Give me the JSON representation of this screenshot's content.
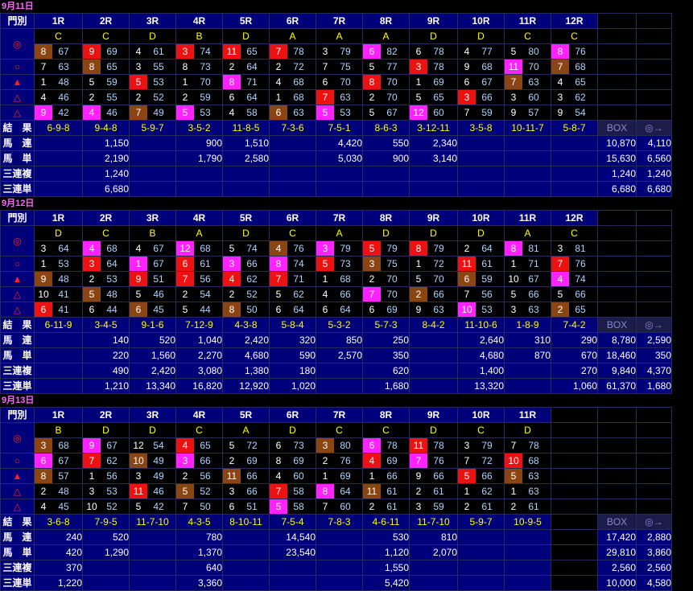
{
  "colors": {
    "red": "#ee1111",
    "magenta": "#ff22ff",
    "brown": "#8b4513",
    "header_bg": "#00007a",
    "grade": "#ffff00",
    "score": "#aad4ff"
  },
  "symbols": [
    "◎",
    "○",
    "▲",
    "△",
    "△"
  ],
  "labels": {
    "mark": "門別",
    "result": "結　果",
    "umaren": "馬　連",
    "umatan": "馬　単",
    "sanrenpuku": "三連複",
    "sanrentan": "三連単",
    "box": "BOX",
    "maru": "◎→"
  },
  "days": [
    {
      "date": "9月11日",
      "races": [
        "1R",
        "2R",
        "3R",
        "4R",
        "5R",
        "6R",
        "7R",
        "8R",
        "9R",
        "10R",
        "11R",
        "12R"
      ],
      "grades": [
        "C",
        "C",
        "D",
        "B",
        "D",
        "A",
        "A",
        "A",
        "D",
        "D",
        "C",
        "C"
      ],
      "rows": [
        [
          [
            "8",
            "67",
            "brn"
          ],
          [
            "9",
            "69",
            "red"
          ],
          [
            "4",
            "61",
            ""
          ],
          [
            "3",
            "74",
            "red"
          ],
          [
            "11",
            "65",
            "red"
          ],
          [
            "7",
            "78",
            "red"
          ],
          [
            "3",
            "79",
            ""
          ],
          [
            "6",
            "82",
            "mag"
          ],
          [
            "6",
            "78",
            ""
          ],
          [
            "4",
            "77",
            ""
          ],
          [
            "5",
            "80",
            ""
          ],
          [
            "8",
            "76",
            "mag"
          ]
        ],
        [
          [
            "7",
            "63",
            ""
          ],
          [
            "8",
            "65",
            "brn"
          ],
          [
            "3",
            "55",
            ""
          ],
          [
            "8",
            "73",
            ""
          ],
          [
            "2",
            "64",
            ""
          ],
          [
            "2",
            "72",
            ""
          ],
          [
            "7",
            "75",
            ""
          ],
          [
            "5",
            "77",
            ""
          ],
          [
            "3",
            "78",
            "red"
          ],
          [
            "9",
            "68",
            ""
          ],
          [
            "11",
            "70",
            "mag"
          ],
          [
            "7",
            "68",
            "brn"
          ]
        ],
        [
          [
            "1",
            "48",
            ""
          ],
          [
            "5",
            "59",
            ""
          ],
          [
            "5",
            "53",
            "red"
          ],
          [
            "1",
            "70",
            ""
          ],
          [
            "8",
            "71",
            "mag"
          ],
          [
            "4",
            "68",
            ""
          ],
          [
            "6",
            "70",
            ""
          ],
          [
            "8",
            "70",
            "red"
          ],
          [
            "1",
            "69",
            ""
          ],
          [
            "6",
            "67",
            ""
          ],
          [
            "7",
            "63",
            "brn"
          ],
          [
            "4",
            "65",
            ""
          ]
        ],
        [
          [
            "4",
            "46",
            ""
          ],
          [
            "2",
            "55",
            ""
          ],
          [
            "2",
            "52",
            ""
          ],
          [
            "2",
            "59",
            ""
          ],
          [
            "6",
            "64",
            ""
          ],
          [
            "1",
            "68",
            ""
          ],
          [
            "7",
            "63",
            "red"
          ],
          [
            "2",
            "70",
            ""
          ],
          [
            "5",
            "65",
            ""
          ],
          [
            "3",
            "66",
            "red"
          ],
          [
            "3",
            "60",
            ""
          ],
          [
            "3",
            "62",
            ""
          ]
        ],
        [
          [
            "9",
            "42",
            "mag"
          ],
          [
            "4",
            "46",
            "mag"
          ],
          [
            "7",
            "49",
            "brn"
          ],
          [
            "5",
            "53",
            "mag"
          ],
          [
            "4",
            "58",
            ""
          ],
          [
            "6",
            "63",
            "brn"
          ],
          [
            "5",
            "53",
            "mag"
          ],
          [
            "5",
            "67",
            ""
          ],
          [
            "12",
            "60",
            "mag"
          ],
          [
            "7",
            "59",
            ""
          ],
          [
            "9",
            "57",
            ""
          ],
          [
            "9",
            "54",
            ""
          ]
        ]
      ],
      "results": [
        "6-9-8",
        "9-4-8",
        "5-9-7",
        "3-5-2",
        "11-8-5",
        "7-3-6",
        "7-5-1",
        "8-6-3",
        "3-12-11",
        "3-5-8",
        "10-11-7",
        "5-8-7"
      ],
      "umaren": [
        "",
        "1,150",
        "",
        "900",
        "1,510",
        "",
        "4,420",
        "550",
        "2,340",
        "",
        "",
        ""
      ],
      "umatan": [
        "",
        "2,190",
        "",
        "1,790",
        "2,580",
        "",
        "5,030",
        "900",
        "3,140",
        "",
        "",
        ""
      ],
      "sanrenpuku": [
        "",
        "1,240",
        "",
        "",
        "",
        "",
        "",
        "",
        "",
        "",
        "",
        ""
      ],
      "sanrentan": [
        "",
        "6,680",
        "",
        "",
        "",
        "",
        "",
        "",
        "",
        "",
        "",
        ""
      ],
      "box": {
        "umaren": [
          "10,870",
          "4,110"
        ],
        "umatan": [
          "15,630",
          "6,560"
        ],
        "sanrenpuku": [
          "1,240",
          "1,240"
        ],
        "sanrentan": [
          "6,680",
          "6,680"
        ]
      }
    },
    {
      "date": "9月12日",
      "races": [
        "1R",
        "2R",
        "3R",
        "4R",
        "5R",
        "6R",
        "7R",
        "8R",
        "9R",
        "10R",
        "11R",
        "12R"
      ],
      "grades": [
        "D",
        "C",
        "B",
        "A",
        "D",
        "C",
        "A",
        "D",
        "D",
        "D",
        "A",
        "C"
      ],
      "rows": [
        [
          [
            "3",
            "64",
            ""
          ],
          [
            "4",
            "68",
            "mag"
          ],
          [
            "4",
            "67",
            ""
          ],
          [
            "12",
            "68",
            "mag"
          ],
          [
            "5",
            "74",
            ""
          ],
          [
            "4",
            "76",
            "brn"
          ],
          [
            "3",
            "79",
            "mag"
          ],
          [
            "5",
            "79",
            "red"
          ],
          [
            "8",
            "79",
            "red"
          ],
          [
            "2",
            "64",
            ""
          ],
          [
            "8",
            "81",
            "mag"
          ],
          [
            "3",
            "81",
            ""
          ]
        ],
        [
          [
            "1",
            "53",
            ""
          ],
          [
            "3",
            "64",
            "red"
          ],
          [
            "1",
            "67",
            "mag"
          ],
          [
            "6",
            "61",
            "red"
          ],
          [
            "3",
            "66",
            "mag"
          ],
          [
            "8",
            "74",
            "mag"
          ],
          [
            "5",
            "73",
            "red"
          ],
          [
            "3",
            "75",
            "brn"
          ],
          [
            "1",
            "72",
            ""
          ],
          [
            "11",
            "61",
            "red"
          ],
          [
            "1",
            "71",
            ""
          ],
          [
            "7",
            "76",
            "red"
          ]
        ],
        [
          [
            "9",
            "48",
            "brn"
          ],
          [
            "2",
            "53",
            ""
          ],
          [
            "9",
            "51",
            "red"
          ],
          [
            "7",
            "56",
            "red"
          ],
          [
            "4",
            "62",
            "red"
          ],
          [
            "7",
            "71",
            "red"
          ],
          [
            "1",
            "68",
            ""
          ],
          [
            "2",
            "70",
            ""
          ],
          [
            "5",
            "70",
            ""
          ],
          [
            "6",
            "59",
            "brn"
          ],
          [
            "10",
            "67",
            ""
          ],
          [
            "4",
            "74",
            "mag"
          ]
        ],
        [
          [
            "10",
            "41",
            ""
          ],
          [
            "5",
            "48",
            "brn"
          ],
          [
            "5",
            "46",
            ""
          ],
          [
            "2",
            "54",
            ""
          ],
          [
            "2",
            "52",
            ""
          ],
          [
            "5",
            "62",
            ""
          ],
          [
            "4",
            "66",
            ""
          ],
          [
            "7",
            "70",
            "mag"
          ],
          [
            "2",
            "66",
            "brn"
          ],
          [
            "7",
            "56",
            ""
          ],
          [
            "5",
            "66",
            ""
          ],
          [
            "5",
            "66",
            ""
          ]
        ],
        [
          [
            "6",
            "41",
            "red"
          ],
          [
            "6",
            "44",
            ""
          ],
          [
            "6",
            "45",
            "brn"
          ],
          [
            "5",
            "44",
            ""
          ],
          [
            "8",
            "50",
            "brn"
          ],
          [
            "6",
            "64",
            ""
          ],
          [
            "6",
            "64",
            ""
          ],
          [
            "6",
            "69",
            ""
          ],
          [
            "9",
            "63",
            ""
          ],
          [
            "10",
            "53",
            "mag"
          ],
          [
            "3",
            "63",
            ""
          ],
          [
            "2",
            "65",
            "brn"
          ]
        ]
      ],
      "results": [
        "6-11-9",
        "3-4-5",
        "9-1-6",
        "7-12-9",
        "4-3-8",
        "5-8-4",
        "5-3-2",
        "5-7-3",
        "8-4-2",
        "11-10-6",
        "1-8-9",
        "7-4-2"
      ],
      "umaren": [
        "",
        "140",
        "520",
        "1,040",
        "2,420",
        "320",
        "850",
        "250",
        "",
        "2,640",
        "310",
        "290"
      ],
      "umatan": [
        "",
        "220",
        "1,560",
        "2,270",
        "4,680",
        "590",
        "2,570",
        "350",
        "",
        "4,680",
        "870",
        "670"
      ],
      "sanrenpuku": [
        "",
        "490",
        "2,420",
        "3,080",
        "1,380",
        "180",
        "",
        "620",
        "",
        "1,400",
        "",
        "270"
      ],
      "sanrentan": [
        "",
        "1,210",
        "13,340",
        "16,820",
        "12,920",
        "1,020",
        "",
        "1,680",
        "",
        "13,320",
        "",
        "1,060"
      ],
      "box": {
        "umaren": [
          "8,780",
          "2,590"
        ],
        "umatan": [
          "18,460",
          "350"
        ],
        "sanrenpuku": [
          "9,840",
          "4,370"
        ],
        "sanrentan": [
          "61,370",
          "1,680"
        ]
      }
    },
    {
      "date": "9月13日",
      "races": [
        "1R",
        "2R",
        "3R",
        "4R",
        "5R",
        "6R",
        "7R",
        "8R",
        "9R",
        "10R",
        "11R",
        ""
      ],
      "grades": [
        "B",
        "D",
        "D",
        "C",
        "A",
        "D",
        "C",
        "C",
        "D",
        "C",
        "D",
        ""
      ],
      "rows": [
        [
          [
            "3",
            "68",
            "brn"
          ],
          [
            "9",
            "67",
            "mag"
          ],
          [
            "12",
            "54",
            ""
          ],
          [
            "4",
            "65",
            "red"
          ],
          [
            "5",
            "72",
            ""
          ],
          [
            "6",
            "73",
            ""
          ],
          [
            "3",
            "80",
            "brn"
          ],
          [
            "6",
            "78",
            "mag"
          ],
          [
            "11",
            "78",
            "red"
          ],
          [
            "3",
            "79",
            ""
          ],
          [
            "7",
            "78",
            ""
          ],
          [
            "",
            ""
          ]
        ],
        [
          [
            "6",
            "67",
            "mag"
          ],
          [
            "7",
            "62",
            "red"
          ],
          [
            "10",
            "49",
            "brn"
          ],
          [
            "3",
            "66",
            "mag"
          ],
          [
            "2",
            "69",
            ""
          ],
          [
            "8",
            "69",
            ""
          ],
          [
            "2",
            "76",
            ""
          ],
          [
            "4",
            "69",
            "red"
          ],
          [
            "7",
            "76",
            "mag"
          ],
          [
            "7",
            "72",
            ""
          ],
          [
            "10",
            "68",
            "red"
          ],
          [
            "",
            ""
          ]
        ],
        [
          [
            "8",
            "57",
            "brn"
          ],
          [
            "1",
            "56",
            ""
          ],
          [
            "3",
            "49",
            ""
          ],
          [
            "2",
            "56",
            ""
          ],
          [
            "11",
            "66",
            "brn"
          ],
          [
            "4",
            "60",
            ""
          ],
          [
            "1",
            "69",
            ""
          ],
          [
            "1",
            "66",
            ""
          ],
          [
            "9",
            "66",
            ""
          ],
          [
            "5",
            "66",
            "red"
          ],
          [
            "5",
            "63",
            "brn"
          ],
          [
            "",
            ""
          ]
        ],
        [
          [
            "2",
            "48",
            ""
          ],
          [
            "3",
            "53",
            ""
          ],
          [
            "11",
            "46",
            "red"
          ],
          [
            "5",
            "52",
            "brn"
          ],
          [
            "3",
            "66",
            ""
          ],
          [
            "7",
            "58",
            "red"
          ],
          [
            "8",
            "64",
            "mag"
          ],
          [
            "11",
            "61",
            "brn"
          ],
          [
            "2",
            "61",
            ""
          ],
          [
            "1",
            "62",
            ""
          ],
          [
            "1",
            "63",
            ""
          ],
          [
            "",
            ""
          ]
        ],
        [
          [
            "4",
            "45",
            ""
          ],
          [
            "10",
            "52",
            ""
          ],
          [
            "5",
            "42",
            ""
          ],
          [
            "7",
            "50",
            ""
          ],
          [
            "6",
            "51",
            ""
          ],
          [
            "5",
            "58",
            "mag"
          ],
          [
            "7",
            "60",
            ""
          ],
          [
            "2",
            "61",
            ""
          ],
          [
            "3",
            "59",
            ""
          ],
          [
            "2",
            "61",
            ""
          ],
          [
            "2",
            "61",
            ""
          ],
          [
            "",
            ""
          ]
        ]
      ],
      "results": [
        "3-6-8",
        "7-9-5",
        "11-7-10",
        "4-3-5",
        "8-10-11",
        "7-5-4",
        "7-8-3",
        "4-6-11",
        "11-7-10",
        "5-9-7",
        "10-9-5",
        ""
      ],
      "umaren": [
        "240",
        "520",
        "",
        "780",
        "",
        "14,540",
        "",
        "530",
        "810",
        "",
        "",
        ""
      ],
      "umatan": [
        "420",
        "1,290",
        "",
        "1,370",
        "",
        "23,540",
        "",
        "1,120",
        "2,070",
        "",
        "",
        ""
      ],
      "sanrenpuku": [
        "370",
        "",
        "",
        "640",
        "",
        "",
        "",
        "1,550",
        "",
        "",
        "",
        ""
      ],
      "sanrentan": [
        "1,220",
        "",
        "",
        "3,360",
        "",
        "",
        "",
        "5,420",
        "",
        "",
        "",
        ""
      ],
      "box": {
        "umaren": [
          "17,420",
          "2,880"
        ],
        "umatan": [
          "29,810",
          "3,860"
        ],
        "sanrenpuku": [
          "2,560",
          "2,560"
        ],
        "sanrentan": [
          "10,000",
          "4,580"
        ]
      }
    }
  ]
}
